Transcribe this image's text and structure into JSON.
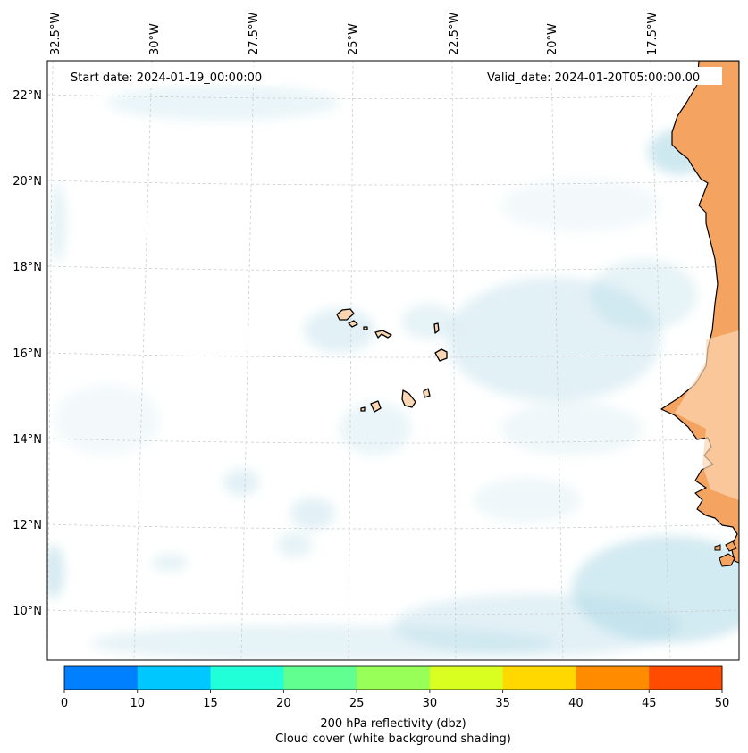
{
  "map": {
    "start_label": "Start date: 2024-01-19_00:00:00",
    "valid_label": "Valid_date: 2024-01-20T05:00:00.00",
    "lon_labels": [
      "32.5°W",
      "30°W",
      "27.5°W",
      "25°W",
      "22.5°W",
      "20°W",
      "17.5°W"
    ],
    "lat_labels": [
      "22°N",
      "20°N",
      "18°N",
      "16°N",
      "14°N",
      "12°N",
      "10°N"
    ],
    "land_color": "#f4a460",
    "cloud_color": "#add8e6",
    "ocean_color": "#ffffff"
  },
  "colorbar": {
    "ticks": [
      "0",
      "10",
      "15",
      "20",
      "25",
      "30",
      "35",
      "40",
      "45",
      "50"
    ],
    "colors": [
      "#0080ff",
      "#00c8ff",
      "#20ffd8",
      "#60ff90",
      "#98ff58",
      "#d8ff20",
      "#ffd800",
      "#ff8c00",
      "#ff4c00"
    ],
    "label_line1": "200 hPa reflectivity (dbz)",
    "label_line2": "Cloud cover (white background shading)"
  }
}
